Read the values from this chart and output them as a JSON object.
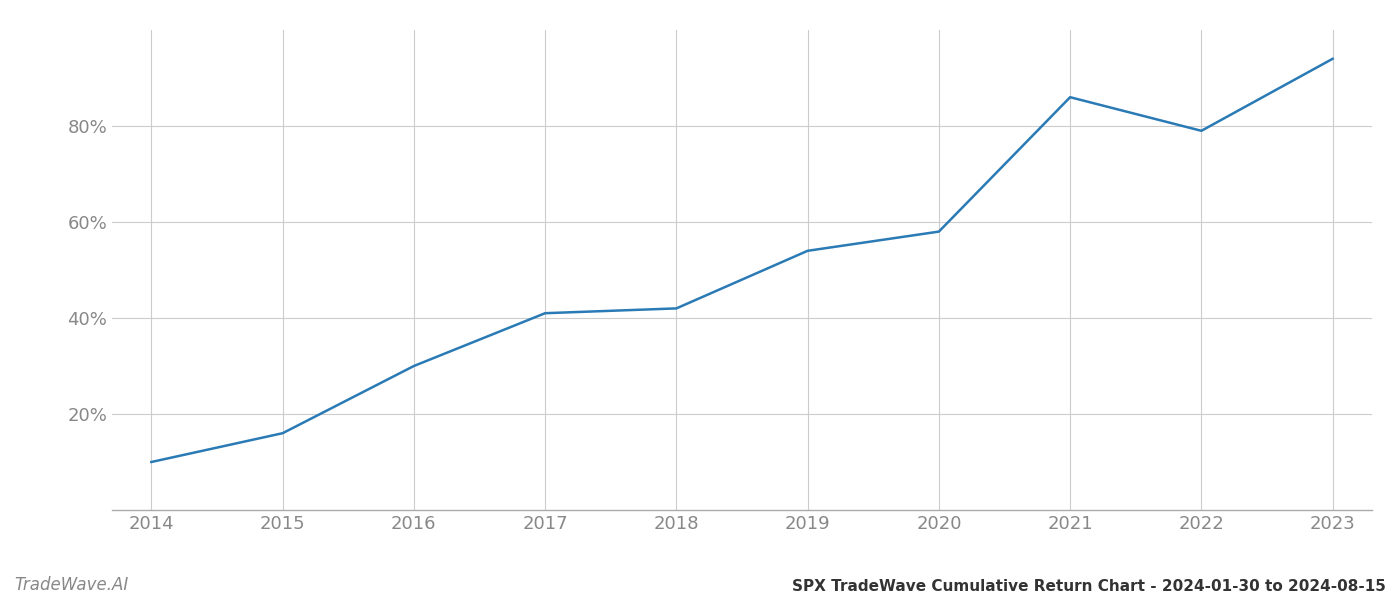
{
  "x_years": [
    2014,
    2015,
    2016,
    2017,
    2018,
    2019,
    2020,
    2021,
    2022,
    2023
  ],
  "y_values": [
    10,
    16,
    30,
    41,
    42,
    54,
    58,
    86,
    79,
    94
  ],
  "line_color": "#2a7ab5",
  "line_width": 1.8,
  "background_color": "#ffffff",
  "grid_color": "#cccccc",
  "tick_label_color": "#888888",
  "title": "SPX TradeWave Cumulative Return Chart - 2024-01-30 to 2024-08-15",
  "watermark": "TradeWave.AI",
  "ylim": [
    0,
    100
  ],
  "yticks": [
    20,
    40,
    60,
    80
  ],
  "ytick_labels": [
    "20%",
    "40%",
    "60%",
    "80%"
  ],
  "title_fontsize": 11,
  "tick_fontsize": 13,
  "watermark_fontsize": 12,
  "spine_color": "#aaaaaa"
}
